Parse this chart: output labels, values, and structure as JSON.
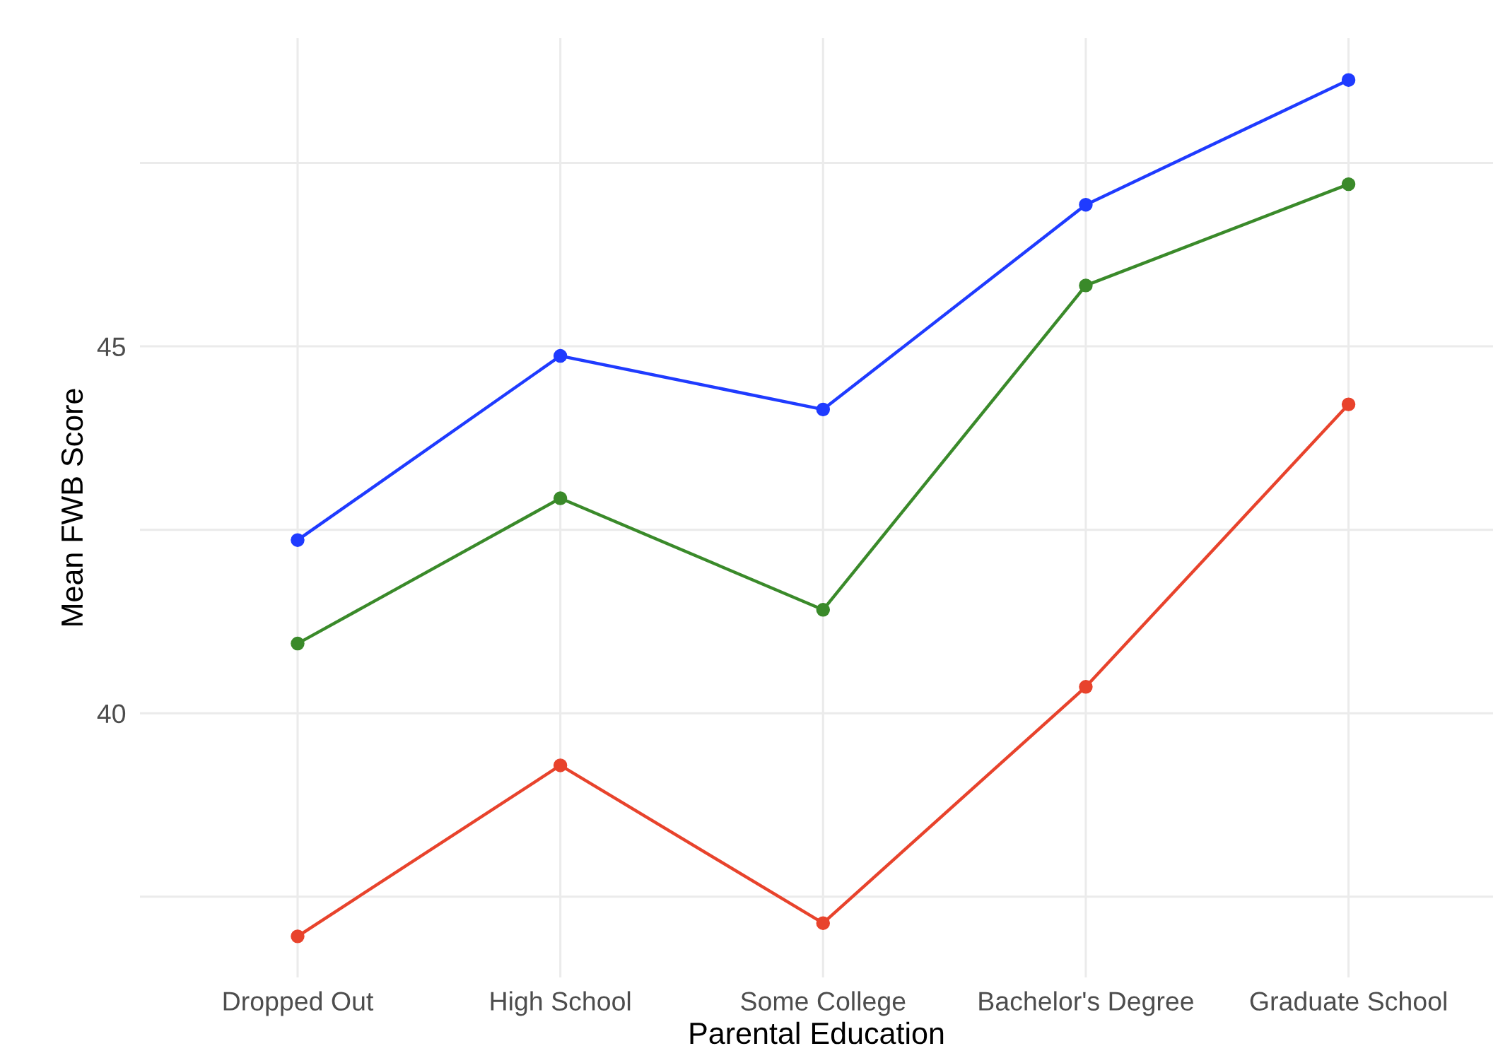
{
  "chart_data": {
    "type": "line",
    "xlabel": "Parental Education",
    "ylabel": "Mean FWB Score",
    "categories": [
      "Dropped Out",
      "High School",
      "Some College",
      "Bachelor's Degree",
      "Graduate School"
    ],
    "series": [
      {
        "color": "#1f3bff",
        "values": [
          42.36,
          44.87,
          44.14,
          46.93,
          48.63
        ]
      },
      {
        "color": "#3a8a2a",
        "values": [
          40.95,
          42.93,
          41.41,
          45.83,
          47.21
        ]
      },
      {
        "color": "#e8432c",
        "values": [
          36.96,
          39.29,
          37.14,
          40.36,
          44.21
        ]
      }
    ],
    "ylim": [
      36.4,
      49.2
    ],
    "yticks": [
      {
        "value": 37.5,
        "label": null
      },
      40,
      {
        "value": 42.5,
        "label": null
      },
      45,
      {
        "value": 47.5,
        "label": null
      }
    ],
    "grid": true,
    "marker": "circle",
    "line_style": "solid"
  }
}
